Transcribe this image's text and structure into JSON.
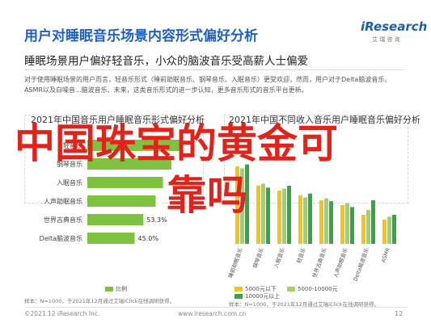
{
  "header": {
    "title": "用户对睡眠音乐场景内容形式偏好分析",
    "subtitle": "睡眠场景用户偏好轻音乐，小众的脑波音乐受高薪人士偏爱",
    "logo_brand": "iResearch",
    "logo_sub": "艾 瑞 咨 询"
  },
  "intro_text": "对于使用睡眠场景的用户而言，轻音乐形式（睡前助眠音乐、钢琴音乐、入眠音乐）更受欢迎，然而，用户对于Delta脑波音乐、ASMR以及白噪音...脑波音乐、未来，这类音乐形式的进一步认知，更多音乐形式的音乐平台更新。",
  "overlay": {
    "line1": "中国珠宝的黄金可",
    "line2": "靠吗"
  },
  "left_chart": {
    "title": "2021年中国音乐用户睡眠音乐形式偏好分析",
    "legend": "比例",
    "source": "样本：N=1000，于2021年12月通过艾瑞iClick在线调研获得。"
  },
  "right_chart": {
    "title": "2021年中国不同收入音乐用户睡眠音乐偏好分析",
    "legend": [
      "5000元以下",
      "5000-10000元",
      "10000元以上"
    ],
    "source": "样本：N=1000，于2021年12月通过艾瑞iClick在线调研获得。"
  },
  "chart_data": [
    {
      "type": "bar",
      "orientation": "horizontal",
      "title": "2021年中国音乐用户睡眠音乐形式偏好分析",
      "categories": [
        "轻音乐",
        "钢琴音乐",
        "入眠音乐",
        "人声助眠音乐",
        "世界古典音乐",
        "Delta脑波音乐"
      ],
      "values": [
        null,
        null,
        null,
        null,
        53.3,
        45.0
      ],
      "value_labels": [
        "",
        "",
        "",
        "",
        "53.3%",
        "45.0%"
      ],
      "series": [
        {
          "name": "比例",
          "values": [
            null,
            null,
            null,
            null,
            53.3,
            45.0
          ]
        }
      ]
    },
    {
      "type": "bar",
      "title": "2021年中国不同收入音乐用户睡眠音乐偏好分析",
      "categories": [
        "睡前助眠音乐",
        "钢琴音乐",
        "入眠音乐",
        "轻音乐",
        "世界古典音乐",
        "人声助眠音乐",
        "Delta脑波音乐",
        "ASMR"
      ],
      "series": [
        {
          "name": "5000元以下",
          "values": [
            null,
            null,
            null,
            null,
            null,
            null,
            null,
            null
          ]
        },
        {
          "name": "5000-10000元",
          "values": [
            null,
            null,
            null,
            null,
            null,
            null,
            null,
            null
          ]
        },
        {
          "name": "10000元以上",
          "values": [
            null,
            null,
            null,
            null,
            null,
            null,
            null,
            null
          ]
        }
      ],
      "legend": "bottom"
    }
  ],
  "footer": {
    "left": "©2021.12 iResearch Inc.",
    "mid": "www.iresearch.com.cn",
    "page": "12"
  },
  "colors": {
    "title_blue": "#1f5fbf",
    "bar_green": "#7fc241",
    "overlay_red": "#e0241c"
  }
}
